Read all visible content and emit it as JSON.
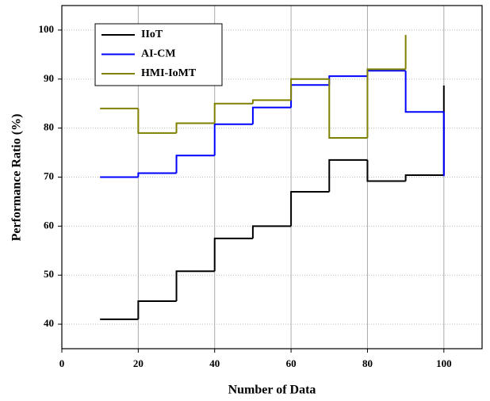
{
  "chart_data": {
    "type": "step",
    "xlabel": "Number of Data",
    "ylabel": "Performance Ratio (%)",
    "x": [
      10,
      20,
      30,
      40,
      50,
      60,
      70,
      80,
      90,
      100
    ],
    "series": [
      {
        "name": "IIoT",
        "color": "#000000",
        "values": [
          41,
          44.7,
          50.8,
          57.5,
          60,
          67,
          73.5,
          69.2,
          70.4,
          88.7
        ]
      },
      {
        "name": "AI-CM",
        "color": "#0000ff",
        "values": [
          70,
          70.8,
          74.4,
          80.8,
          84.2,
          88.8,
          90.6,
          91.7,
          83.3,
          70.2
        ]
      },
      {
        "name": "HMI-IoMT",
        "color": "#808000",
        "values": [
          84,
          79,
          81,
          85,
          85.7,
          90,
          78,
          92,
          99,
          null
        ]
      }
    ],
    "xlim": [
      0,
      110
    ],
    "ylim": [
      35,
      105
    ],
    "xticks": [
      0,
      20,
      40,
      60,
      80,
      100
    ],
    "yticks": [
      40,
      50,
      60,
      70,
      80,
      90,
      100
    ],
    "grid": true,
    "legend": "upper left"
  }
}
